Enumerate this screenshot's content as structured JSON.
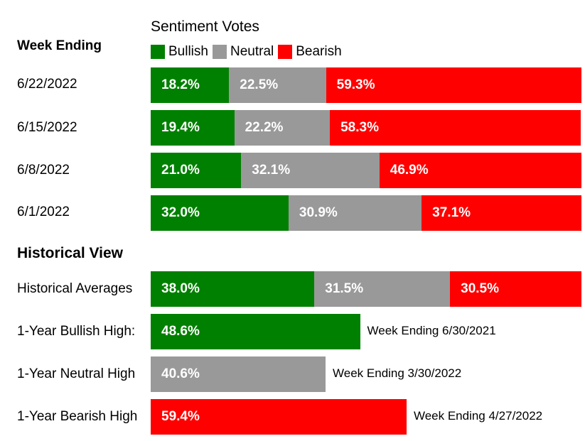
{
  "chart_data": {
    "type": "bar",
    "title": "Sentiment Votes",
    "colors": {
      "Bullish": "#008000",
      "Neutral": "#999999",
      "Bearish": "#ff0000"
    },
    "legend": [
      "Bullish",
      "Neutral",
      "Bearish"
    ],
    "week_header": "Week Ending",
    "weeks": [
      {
        "label": "6/22/2022",
        "bullish": 18.2,
        "neutral": 22.5,
        "bearish": 59.3,
        "bullish_text": "18.2%",
        "neutral_text": "22.5%",
        "bearish_text": "59.3%"
      },
      {
        "label": "6/15/2022",
        "bullish": 19.4,
        "neutral": 22.2,
        "bearish": 58.3,
        "bullish_text": "19.4%",
        "neutral_text": "22.2%",
        "bearish_text": "58.3%"
      },
      {
        "label": "6/8/2022",
        "bullish": 21.0,
        "neutral": 32.1,
        "bearish": 46.9,
        "bullish_text": "21.0%",
        "neutral_text": "32.1%",
        "bearish_text": "46.9%"
      },
      {
        "label": "6/1/2022",
        "bullish": 32.0,
        "neutral": 30.9,
        "bearish": 37.1,
        "bullish_text": "32.0%",
        "neutral_text": "30.9%",
        "bearish_text": "37.1%"
      }
    ],
    "historical_header": "Historical View",
    "historical_averages": {
      "label": "Historical Averages",
      "bullish": 38.0,
      "neutral": 31.5,
      "bearish": 30.5,
      "bullish_text": "38.0%",
      "neutral_text": "31.5%",
      "bearish_text": "30.5%"
    },
    "highs": [
      {
        "label": "1-Year Bullish High:",
        "category": "Bullish",
        "value": 48.6,
        "value_text": "48.6%",
        "note": "Week Ending 6/30/2021"
      },
      {
        "label": "1-Year Neutral High",
        "category": "Neutral",
        "value": 40.6,
        "value_text": "40.6%",
        "note": "Week Ending 3/30/2022"
      },
      {
        "label": "1-Year Bearish High",
        "category": "Bearish",
        "value": 59.4,
        "value_text": "59.4%",
        "note": "Week Ending 4/27/2022"
      }
    ]
  }
}
